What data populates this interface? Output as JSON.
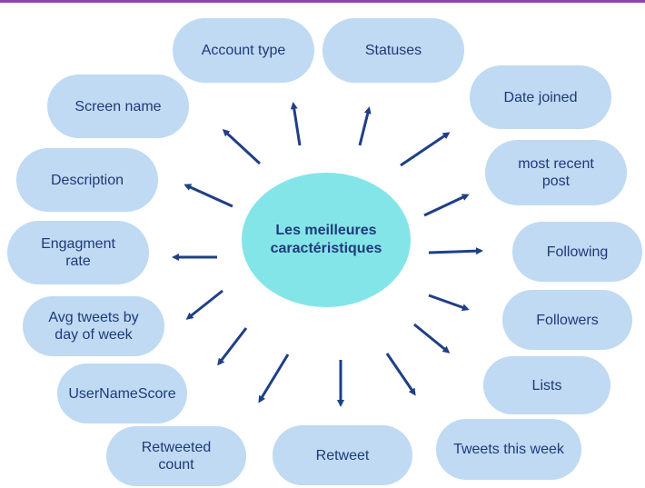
{
  "diagram": {
    "center_label": "Les meilleures\ncaractéristiques",
    "features": [
      "Account type",
      "Statuses",
      "Date joined",
      "most recent\npost",
      "Following",
      "Followers",
      "Lists",
      "Tweets this week",
      "Retweet",
      "Retweeted\ncount",
      "UserNameScore",
      "Avg tweets by\nday of week",
      "Engagment\nrate",
      "Description",
      "Screen name"
    ]
  },
  "colors": {
    "pill": "#bfdaf2",
    "center": "#84e5e8",
    "text": "#1f3a7a",
    "arrow": "#1f3f86",
    "accent_bar": "#8e44ad"
  }
}
